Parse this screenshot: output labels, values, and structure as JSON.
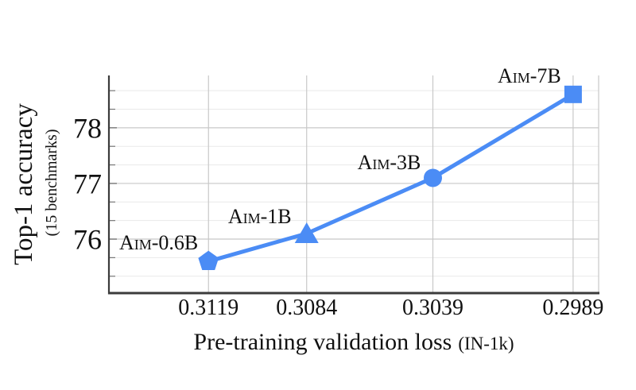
{
  "figure": {
    "background": "#ffffff",
    "description": "Scaling curve of AIM models: downstream accuracy vs pre-training validation loss"
  },
  "chart_data": {
    "type": "line",
    "title": "",
    "xlabel": "Pre-training validation loss",
    "xlabel_suffix": "(IN-1k)",
    "ylabel": "Top-1 accuracy",
    "ylabel_suffix": "(15 benchmarks)",
    "x_axis": {
      "tick_values": [
        0.3119,
        0.3084,
        0.3039,
        0.2989
      ],
      "tick_labels": [
        "0.3119",
        "0.3084",
        "0.3039",
        "0.2989"
      ],
      "reversed": true,
      "range": [
        0.31545,
        0.29799
      ]
    },
    "y_axis": {
      "tick_values": [
        76,
        77,
        78
      ],
      "tick_labels": [
        "76",
        "77",
        "78"
      ],
      "range": [
        75.03,
        78.94
      ],
      "minor_tick_values": [
        75.3333,
        75.6667,
        76.3333,
        76.6667,
        77.3333,
        77.6667,
        78.3333,
        78.6667
      ]
    },
    "grid": {
      "horizontal_major": true,
      "horizontal_minor": true,
      "vertical_at_xticks": true,
      "major_color": "#c8c8c8",
      "minor_color": "#e9e9e9"
    },
    "series": [
      {
        "name": "AIM models",
        "color": "#4b8cf5",
        "line_width": 5,
        "points": [
          {
            "name": "AIM-0.6B",
            "label_display": "Aim-0.6B",
            "x": 0.3119,
            "y": 75.6,
            "marker": "pentagon",
            "label_anchor": "end",
            "label_dx": -13,
            "label_dy": -15
          },
          {
            "name": "AIM-1B",
            "label_display": "Aim-1B",
            "x": 0.3084,
            "y": 76.1,
            "marker": "triangle",
            "label_anchor": "middle",
            "label_dx": -59,
            "label_dy": -13
          },
          {
            "name": "AIM-3B",
            "label_display": "Aim-3B",
            "x": 0.3039,
            "y": 77.1,
            "marker": "circle",
            "label_anchor": "middle",
            "label_dx": -55,
            "label_dy": -11
          },
          {
            "name": "AIM-7B",
            "label_display": "Aim-7B",
            "x": 0.2989,
            "y": 78.6,
            "marker": "square",
            "label_anchor": "middle",
            "label_dx": -55,
            "label_dy": -15
          }
        ]
      }
    ],
    "colors": {
      "accent_blue": "#4b8cf5",
      "axis_spine": "#3b3b3b",
      "tick_mark": "#777777",
      "text": "#111111"
    }
  }
}
